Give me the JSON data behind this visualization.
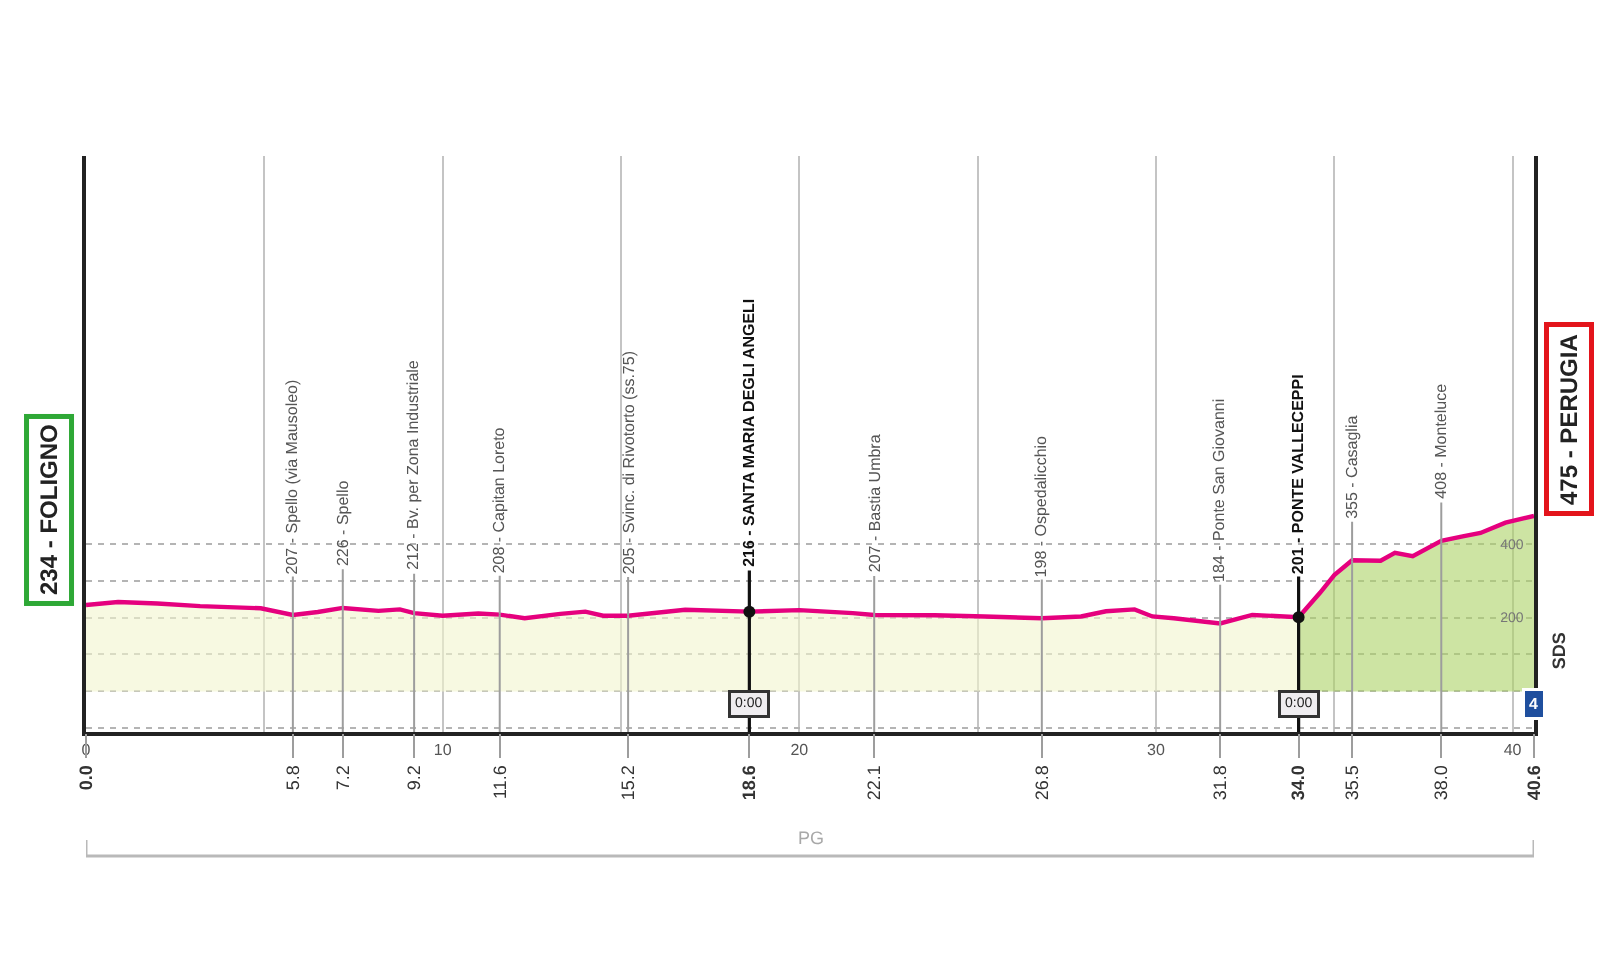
{
  "chart_data": {
    "type": "area",
    "series": [
      {
        "color": "#f7f9e1",
        "x": [
          0.0,
          0.9,
          2.0,
          3.2,
          4.9,
          5.8,
          6.5,
          7.2,
          8.2,
          8.8,
          9.2,
          10.0,
          11.0,
          11.6,
          12.3,
          13.3,
          14.0,
          14.5,
          15.2,
          16.8,
          18.6,
          20.0,
          21.5,
          22.1,
          23.8,
          25.2,
          26.8,
          27.9,
          28.6,
          29.4,
          29.9,
          30.5,
          31.8,
          32.7,
          34.0
        ],
        "values": [
          234,
          242,
          238,
          231,
          225,
          207,
          215,
          226,
          218,
          222,
          212,
          205,
          211,
          208,
          198,
          210,
          216,
          205,
          205,
          221,
          216,
          220,
          212,
          207,
          206,
          203,
          198,
          203,
          217,
          222,
          203,
          198,
          184,
          207,
          201
        ]
      },
      {
        "color": "#cde4a3",
        "x": [
          34.0,
          34.6,
          35.0,
          35.5,
          36.3,
          36.7,
          37.2,
          38.0,
          38.6,
          39.1,
          39.8,
          40.6
        ],
        "values": [
          201,
          267,
          315,
          355,
          354,
          375,
          366,
          408,
          420,
          429,
          457,
          475
        ]
      },
      {
        "type": "line",
        "color": "#e5007e",
        "x": [
          0.0,
          0.9,
          2.0,
          3.2,
          4.9,
          5.8,
          6.5,
          7.2,
          8.2,
          8.8,
          9.2,
          10.0,
          11.0,
          11.6,
          12.3,
          13.3,
          14.0,
          14.5,
          15.2,
          16.8,
          18.6,
          20.0,
          21.5,
          22.1,
          23.8,
          25.2,
          26.8,
          27.9,
          28.6,
          29.4,
          29.9,
          30.5,
          31.8,
          32.7,
          34.0,
          34.6,
          35.0,
          35.5,
          36.3,
          36.7,
          37.2,
          38.0,
          38.6,
          39.1,
          39.8,
          40.6
        ],
        "values": [
          234,
          242,
          238,
          231,
          225,
          207,
          215,
          226,
          218,
          222,
          212,
          205,
          211,
          208,
          198,
          210,
          216,
          205,
          205,
          221,
          216,
          220,
          212,
          207,
          206,
          203,
          198,
          203,
          217,
          222,
          203,
          198,
          184,
          207,
          201,
          267,
          315,
          355,
          354,
          375,
          366,
          408,
          420,
          429,
          457,
          475
        ]
      }
    ],
    "xlim": [
      0,
      40.6
    ],
    "xticks": [
      0,
      {
        "value": 5,
        "label": null
      },
      10,
      {
        "value": 15,
        "label": null
      },
      20,
      {
        "value": 25,
        "label": null
      },
      30,
      {
        "value": 35,
        "label": null
      },
      40
    ],
    "x2lim": [
      0,
      40.6
    ],
    "x2ticks": [
      {
        "value": 0,
        "label": "0.0"
      },
      5.8,
      7.2,
      9.2,
      11.6,
      15.2,
      18.6,
      22.1,
      26.8,
      31.8,
      {
        "value": 34,
        "label": "34.0"
      },
      35.5,
      {
        "value": 38,
        "label": "38.0"
      },
      40.6
    ],
    "ylim": [
      -110,
      1450
    ],
    "yticks": [
      {
        "value": -100,
        "label": null
      },
      {
        "value": 0,
        "label": null
      },
      {
        "value": 100,
        "label": null
      },
      200,
      {
        "value": 300,
        "label": null
      },
      400
    ],
    "grid": true,
    "ref_lines": [
      {
        "axis": "x",
        "value": 5.8,
        "color": "#9d9d9d"
      },
      {
        "axis": "x",
        "value": 7.2,
        "color": "#9d9d9d"
      },
      {
        "axis": "x",
        "value": 9.2,
        "color": "#9d9d9d"
      },
      {
        "axis": "x",
        "value": 11.6,
        "color": "#9d9d9d"
      },
      {
        "axis": "x",
        "value": 15.2,
        "color": "#9d9d9d"
      },
      {
        "axis": "x",
        "value": 18.6,
        "color": "#111111"
      },
      {
        "axis": "x",
        "value": 22.1,
        "color": "#9d9d9d"
      },
      {
        "axis": "x",
        "value": 26.8,
        "color": "#9d9d9d"
      },
      {
        "axis": "x",
        "value": 31.8,
        "color": "#9d9d9d"
      },
      {
        "axis": "x",
        "value": 34.0,
        "color": "#111111"
      },
      {
        "axis": "x",
        "value": 35.5,
        "color": "#9d9d9d"
      },
      {
        "axis": "x",
        "value": 38.0,
        "color": "#9d9d9d"
      }
    ],
    "bands": [
      {
        "axis": "x",
        "from": 0,
        "to": 40.6,
        "label": "PG"
      }
    ],
    "annotations": [
      {
        "text": "234 - FOLIGNO",
        "x": 0,
        "y": 234
      },
      {
        "text": "207 - Spello (via Mausoleo)",
        "x": 5.8,
        "y": 207
      },
      {
        "text": "226 - Spello",
        "x": 7.2,
        "y": 226
      },
      {
        "text": "212 - Bv. per Zona Industriale",
        "x": 9.2,
        "y": 212
      },
      {
        "text": "208 - Capitan Loreto",
        "x": 11.6,
        "y": 208
      },
      {
        "text": "205 - Svinc. di Rivotorto (ss.75)",
        "x": 15.2,
        "y": 205
      },
      {
        "text": "216 - SANTA MARIA DEGLI ANGELI",
        "x": 18.6,
        "y": 216
      },
      {
        "text": "207 - Bastia Umbra",
        "x": 22.1,
        "y": 207
      },
      {
        "text": "198 - Ospedalicchio",
        "x": 26.8,
        "y": 198
      },
      {
        "text": "184 - Ponte San Giovanni",
        "x": 31.8,
        "y": 184
      },
      {
        "text": "201 - PONTE VALLECEPPI",
        "x": 34.0,
        "y": 201
      },
      {
        "text": "355 - Casaglia",
        "x": 35.5,
        "y": 355
      },
      {
        "text": "408 - Monteluce",
        "x": 38.0,
        "y": 408
      },
      {
        "text": "475 - PERUGIA",
        "x": 40.6,
        "y": 475
      },
      {
        "text": "0:00",
        "x": 18.6,
        "y": -35
      },
      {
        "text": "0:00",
        "x": 34.0,
        "y": -35
      },
      {
        "text": "4",
        "x": 40.6,
        "y": -35
      },
      "SDS"
    ]
  }
}
